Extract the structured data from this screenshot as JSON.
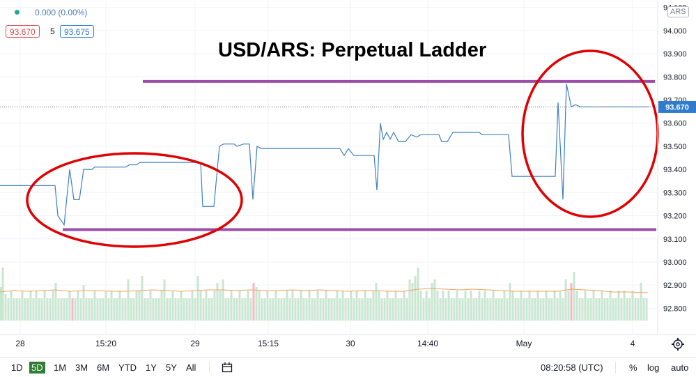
{
  "header": {
    "change_text": "0.000 (0.00%)",
    "bid": "93.670",
    "spread": "5",
    "ask": "93.675",
    "currency_label": "ARS"
  },
  "overlay_title": "USD/ARS: Perpetual Ladder",
  "price_axis": {
    "ticks": [
      "94.100",
      "94.000",
      "93.900",
      "93.800",
      "93.700",
      "93.600",
      "93.500",
      "93.400",
      "93.300",
      "93.200",
      "93.100",
      "93.000",
      "92.900",
      "92.800"
    ],
    "current_price": "93.670"
  },
  "time_axis": {
    "labels": [
      "28",
      "15:20",
      "29",
      "15:15",
      "30",
      "14:40",
      "May",
      "4"
    ]
  },
  "bottom_bar": {
    "ranges": [
      "1D",
      "5D",
      "1M",
      "3M",
      "6M",
      "YTD",
      "1Y",
      "5Y",
      "All"
    ],
    "selected_range": "5D",
    "clock": "08:20:58 (UTC)",
    "percent_label": "%",
    "log_label": "log",
    "auto_label": "auto"
  },
  "colors": {
    "line": "#3f7fc0",
    "purple": "#9b4ea8",
    "circle": "#e00000",
    "vol_up": "#c9e6d1",
    "vol_down": "#f5b8c0",
    "ma": "#f0a25a",
    "price_tag": "#2f7ccf",
    "bid_box": "#e04b4b",
    "ask_box": "#2f7ccf"
  },
  "chart_data": {
    "type": "line",
    "title": "USD/ARS: Perpetual Ladder",
    "ylim": [
      92.75,
      94.12
    ],
    "x_range": [
      0,
      940
    ],
    "series": [
      {
        "values": [
          [
            0,
            93.33
          ],
          [
            79,
            93.33
          ],
          [
            83,
            93.2
          ],
          [
            92,
            93.16
          ],
          [
            100,
            93.4
          ],
          [
            106,
            93.27
          ],
          [
            114,
            93.27
          ],
          [
            120,
            93.4
          ],
          [
            132,
            93.4
          ],
          [
            136,
            93.41
          ],
          [
            180,
            93.41
          ],
          [
            186,
            93.42
          ],
          [
            196,
            93.42
          ],
          [
            201,
            93.43
          ],
          [
            288,
            93.43
          ],
          [
            291,
            93.24
          ],
          [
            307,
            93.24
          ],
          [
            315,
            93.5
          ],
          [
            321,
            93.51
          ],
          [
            336,
            93.51
          ],
          [
            340,
            93.5
          ],
          [
            350,
            93.51
          ],
          [
            358,
            93.51
          ],
          [
            363,
            93.27
          ],
          [
            369,
            93.5
          ],
          [
            376,
            93.49
          ],
          [
            488,
            93.49
          ],
          [
            494,
            93.46
          ],
          [
            500,
            93.49
          ],
          [
            508,
            93.46
          ],
          [
            537,
            93.46
          ],
          [
            541,
            93.31
          ],
          [
            546,
            93.6
          ],
          [
            550,
            93.53
          ],
          [
            555,
            93.56
          ],
          [
            560,
            93.53
          ],
          [
            565,
            93.56
          ],
          [
            572,
            93.52
          ],
          [
            582,
            93.52
          ],
          [
            590,
            93.55
          ],
          [
            598,
            93.54
          ],
          [
            604,
            93.55
          ],
          [
            630,
            93.55
          ],
          [
            634,
            93.52
          ],
          [
            642,
            93.52
          ],
          [
            650,
            93.56
          ],
          [
            688,
            93.56
          ],
          [
            692,
            93.55
          ],
          [
            730,
            93.55
          ],
          [
            735,
            93.37
          ],
          [
            797,
            93.37
          ],
          [
            801,
            93.69
          ],
          [
            808,
            93.27
          ],
          [
            813,
            93.77
          ],
          [
            820,
            93.67
          ],
          [
            826,
            93.68
          ],
          [
            833,
            93.67
          ],
          [
            932,
            93.67
          ]
        ]
      }
    ],
    "volume": [
      [
        1,
        0.48
      ],
      [
        4,
        0.76
      ],
      [
        8,
        0.38
      ],
      [
        12,
        0.32
      ],
      [
        16,
        0.43
      ],
      [
        20,
        0.32
      ],
      [
        24,
        0.32
      ],
      [
        28,
        0.32
      ],
      [
        32,
        0.43
      ],
      [
        36,
        0.32
      ],
      [
        40,
        0.32
      ],
      [
        44,
        0.43
      ],
      [
        48,
        0.32
      ],
      [
        52,
        0.43
      ],
      [
        56,
        0.32
      ],
      [
        60,
        0.32
      ],
      [
        64,
        0.43
      ],
      [
        68,
        0.32
      ],
      [
        72,
        0.32
      ],
      [
        76,
        0.43
      ],
      [
        80,
        0.54
      ],
      [
        84,
        0.32
      ],
      [
        88,
        0.32
      ],
      [
        92,
        0.32
      ],
      [
        96,
        0.32
      ],
      [
        100,
        0.43
      ],
      [
        104,
        0.32
      ],
      [
        108,
        0.32
      ],
      [
        112,
        0.43
      ],
      [
        116,
        0.32
      ],
      [
        120,
        0.51
      ],
      [
        124,
        0.32
      ],
      [
        128,
        0.32
      ],
      [
        132,
        0.32
      ],
      [
        136,
        0.43
      ],
      [
        140,
        0.32
      ],
      [
        144,
        0.32
      ],
      [
        148,
        0.32
      ],
      [
        152,
        0.43
      ],
      [
        156,
        0.32
      ],
      [
        160,
        0.43
      ],
      [
        164,
        0.32
      ],
      [
        168,
        0.32
      ],
      [
        172,
        0.43
      ],
      [
        176,
        0.32
      ],
      [
        180,
        0.32
      ],
      [
        184,
        0.59
      ],
      [
        188,
        0.32
      ],
      [
        192,
        0.32
      ],
      [
        196,
        0.43
      ],
      [
        200,
        0.43
      ],
      [
        204,
        0.64
      ],
      [
        208,
        0.32
      ],
      [
        212,
        0.32
      ],
      [
        216,
        0.43
      ],
      [
        220,
        0.32
      ],
      [
        224,
        0.32
      ],
      [
        228,
        0.32
      ],
      [
        232,
        0.43
      ],
      [
        236,
        0.59
      ],
      [
        240,
        0.32
      ],
      [
        244,
        0.32
      ],
      [
        248,
        0.43
      ],
      [
        252,
        0.32
      ],
      [
        256,
        0.32
      ],
      [
        260,
        0.43
      ],
      [
        264,
        0.32
      ],
      [
        268,
        0.32
      ],
      [
        272,
        0.32
      ],
      [
        276,
        0.43
      ],
      [
        280,
        0.32
      ],
      [
        284,
        0.64
      ],
      [
        288,
        0.43
      ],
      [
        292,
        0.32
      ],
      [
        296,
        0.43
      ],
      [
        300,
        0.32
      ],
      [
        304,
        0.32
      ],
      [
        308,
        0.43
      ],
      [
        312,
        0.54
      ],
      [
        316,
        0.43
      ],
      [
        320,
        0.59
      ],
      [
        324,
        0.32
      ],
      [
        328,
        0.32
      ],
      [
        332,
        0.43
      ],
      [
        336,
        0.32
      ],
      [
        340,
        0.32
      ],
      [
        344,
        0.43
      ],
      [
        348,
        0.32
      ],
      [
        352,
        0.32
      ],
      [
        356,
        0.43
      ],
      [
        360,
        0.32
      ],
      [
        364,
        0.54
      ],
      [
        368,
        0.48
      ],
      [
        372,
        0.43
      ],
      [
        376,
        0.32
      ],
      [
        380,
        0.32
      ],
      [
        384,
        0.43
      ],
      [
        388,
        0.32
      ],
      [
        392,
        0.32
      ],
      [
        396,
        0.43
      ],
      [
        400,
        0.32
      ],
      [
        404,
        0.32
      ],
      [
        408,
        0.32
      ],
      [
        412,
        0.43
      ],
      [
        416,
        0.32
      ],
      [
        420,
        0.43
      ],
      [
        424,
        0.32
      ],
      [
        428,
        0.32
      ],
      [
        432,
        0.43
      ],
      [
        436,
        0.32
      ],
      [
        440,
        0.32
      ],
      [
        444,
        0.43
      ],
      [
        448,
        0.32
      ],
      [
        452,
        0.32
      ],
      [
        456,
        0.43
      ],
      [
        460,
        0.32
      ],
      [
        464,
        0.32
      ],
      [
        468,
        0.43
      ],
      [
        472,
        0.32
      ],
      [
        476,
        0.32
      ],
      [
        480,
        0.32
      ],
      [
        484,
        0.43
      ],
      [
        488,
        0.32
      ],
      [
        492,
        0.43
      ],
      [
        496,
        0.32
      ],
      [
        500,
        0.32
      ],
      [
        504,
        0.43
      ],
      [
        508,
        0.32
      ],
      [
        512,
        0.43
      ],
      [
        516,
        0.32
      ],
      [
        520,
        0.32
      ],
      [
        524,
        0.43
      ],
      [
        528,
        0.32
      ],
      [
        532,
        0.32
      ],
      [
        536,
        0.43
      ],
      [
        540,
        0.54
      ],
      [
        544,
        0.43
      ],
      [
        548,
        0.32
      ],
      [
        552,
        0.32
      ],
      [
        556,
        0.43
      ],
      [
        560,
        0.32
      ],
      [
        564,
        0.32
      ],
      [
        568,
        0.43
      ],
      [
        572,
        0.32
      ],
      [
        576,
        0.32
      ],
      [
        580,
        0.43
      ],
      [
        584,
        0.32
      ],
      [
        588,
        0.59
      ],
      [
        592,
        0.54
      ],
      [
        596,
        0.64
      ],
      [
        600,
        0.76
      ],
      [
        604,
        0.43
      ],
      [
        608,
        0.32
      ],
      [
        612,
        0.43
      ],
      [
        616,
        0.32
      ],
      [
        620,
        0.54
      ],
      [
        624,
        0.59
      ],
      [
        628,
        0.43
      ],
      [
        632,
        0.32
      ],
      [
        636,
        0.43
      ],
      [
        640,
        0.32
      ],
      [
        644,
        0.43
      ],
      [
        648,
        0.32
      ],
      [
        652,
        0.32
      ],
      [
        656,
        0.43
      ],
      [
        660,
        0.32
      ],
      [
        664,
        0.32
      ],
      [
        668,
        0.43
      ],
      [
        672,
        0.32
      ],
      [
        676,
        0.43
      ],
      [
        680,
        0.32
      ],
      [
        684,
        0.32
      ],
      [
        688,
        0.43
      ],
      [
        692,
        0.32
      ],
      [
        696,
        0.43
      ],
      [
        700,
        0.32
      ],
      [
        704,
        0.32
      ],
      [
        708,
        0.43
      ],
      [
        712,
        0.32
      ],
      [
        716,
        0.32
      ],
      [
        720,
        0.32
      ],
      [
        724,
        0.43
      ],
      [
        728,
        0.32
      ],
      [
        732,
        0.54
      ],
      [
        736,
        0.43
      ],
      [
        740,
        0.32
      ],
      [
        744,
        0.32
      ],
      [
        748,
        0.43
      ],
      [
        752,
        0.32
      ],
      [
        756,
        0.32
      ],
      [
        760,
        0.43
      ],
      [
        764,
        0.32
      ],
      [
        768,
        0.32
      ],
      [
        772,
        0.43
      ],
      [
        776,
        0.32
      ],
      [
        780,
        0.32
      ],
      [
        784,
        0.43
      ],
      [
        788,
        0.32
      ],
      [
        792,
        0.32
      ],
      [
        796,
        0.43
      ],
      [
        800,
        0.32
      ],
      [
        804,
        0.43
      ],
      [
        808,
        0.32
      ],
      [
        812,
        0.59
      ],
      [
        816,
        0.43
      ],
      [
        820,
        0.54
      ],
      [
        824,
        0.7
      ],
      [
        828,
        0.43
      ],
      [
        832,
        0.32
      ],
      [
        836,
        0.32
      ],
      [
        840,
        0.43
      ],
      [
        844,
        0.32
      ],
      [
        848,
        0.32
      ],
      [
        852,
        0.43
      ],
      [
        856,
        0.32
      ],
      [
        860,
        0.32
      ],
      [
        864,
        0.43
      ],
      [
        868,
        0.32
      ],
      [
        872,
        0.32
      ],
      [
        876,
        0.43
      ],
      [
        880,
        0.32
      ],
      [
        884,
        0.32
      ],
      [
        888,
        0.43
      ],
      [
        892,
        0.32
      ],
      [
        896,
        0.43
      ],
      [
        900,
        0.32
      ],
      [
        904,
        0.32
      ],
      [
        908,
        0.43
      ],
      [
        912,
        0.32
      ],
      [
        916,
        0.32
      ],
      [
        920,
        0.54
      ],
      [
        924,
        0.32
      ],
      [
        928,
        0.32
      ]
    ],
    "volume_down_x": [
      104,
      364,
      820
    ],
    "ma": [
      [
        0,
        0.41
      ],
      [
        20,
        0.43
      ],
      [
        40,
        0.42
      ],
      [
        60,
        0.43
      ],
      [
        80,
        0.44
      ],
      [
        100,
        0.42
      ],
      [
        120,
        0.43
      ],
      [
        140,
        0.43
      ],
      [
        160,
        0.42
      ],
      [
        180,
        0.42
      ],
      [
        200,
        0.43
      ],
      [
        220,
        0.44
      ],
      [
        240,
        0.43
      ],
      [
        260,
        0.42
      ],
      [
        280,
        0.43
      ],
      [
        300,
        0.44
      ],
      [
        320,
        0.44
      ],
      [
        340,
        0.43
      ],
      [
        360,
        0.44
      ],
      [
        380,
        0.43
      ],
      [
        400,
        0.43
      ],
      [
        420,
        0.44
      ],
      [
        440,
        0.43
      ],
      [
        460,
        0.44
      ],
      [
        480,
        0.43
      ],
      [
        500,
        0.42
      ],
      [
        520,
        0.43
      ],
      [
        540,
        0.43
      ],
      [
        560,
        0.42
      ],
      [
        580,
        0.42
      ],
      [
        600,
        0.45
      ],
      [
        620,
        0.46
      ],
      [
        640,
        0.45
      ],
      [
        660,
        0.44
      ],
      [
        680,
        0.45
      ],
      [
        700,
        0.44
      ],
      [
        720,
        0.43
      ],
      [
        740,
        0.42
      ],
      [
        760,
        0.42
      ],
      [
        780,
        0.42
      ],
      [
        800,
        0.42
      ],
      [
        820,
        0.45
      ],
      [
        840,
        0.44
      ],
      [
        860,
        0.43
      ],
      [
        880,
        0.41
      ],
      [
        900,
        0.41
      ],
      [
        930,
        0.4
      ]
    ],
    "support_level": 93.14,
    "resistance_level": 93.78
  }
}
